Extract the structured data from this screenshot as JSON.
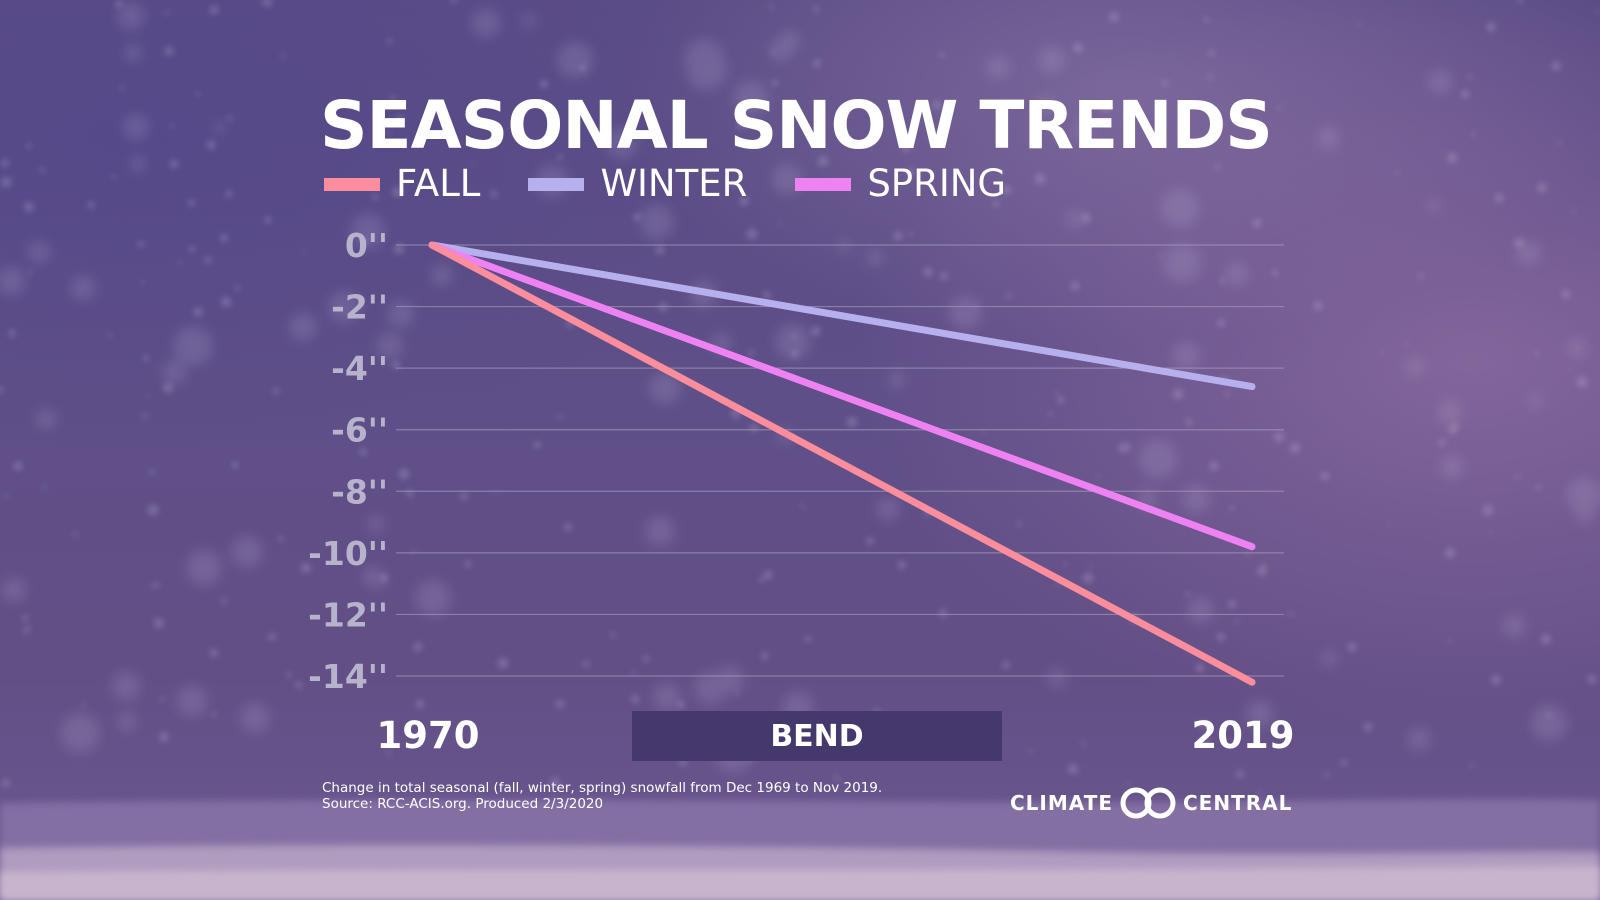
{
  "title": "SEASONAL SNOW TRENDS",
  "location": "BEND",
  "footnote": {
    "line1": "Change in total seasonal (fall, winter, spring) snowfall from Dec 1969 to Nov 2019.",
    "line2": "Source: RCC-ACIS.org. Produced 2/3/2020"
  },
  "logo": {
    "word_left": "CLIMATE",
    "word_right": "CENTRAL",
    "mark_icon": "climate-central-rings-icon"
  },
  "colors": {
    "fall": "#fc8d9c",
    "winter": "#b7b0ee",
    "spring": "#ee82f2",
    "gridline": "#a89fc0",
    "location_box": "#45386d"
  },
  "chart_data": {
    "type": "line",
    "title": "SEASONAL SNOW TRENDS",
    "xlabel": "",
    "ylabel": "",
    "x": [
      1970,
      2019
    ],
    "x_tick_labels": [
      "1970",
      "2019"
    ],
    "y_ticks": [
      0,
      -2,
      -4,
      -6,
      -8,
      -10,
      -12,
      -14
    ],
    "y_tick_labels": [
      "0''",
      "-2''",
      "-4''",
      "-6''",
      "-8''",
      "-10''",
      "-12''",
      "-14''"
    ],
    "ylim": [
      -14,
      0
    ],
    "grid": true,
    "legend_position": "top-left",
    "series": [
      {
        "name": "FALL",
        "values": [
          0,
          -14.2
        ],
        "color": "#fc8d9c"
      },
      {
        "name": "WINTER",
        "values": [
          0,
          -4.6
        ],
        "color": "#b7b0ee"
      },
      {
        "name": "SPRING",
        "values": [
          0,
          -9.8
        ],
        "color": "#ee82f2"
      }
    ]
  }
}
